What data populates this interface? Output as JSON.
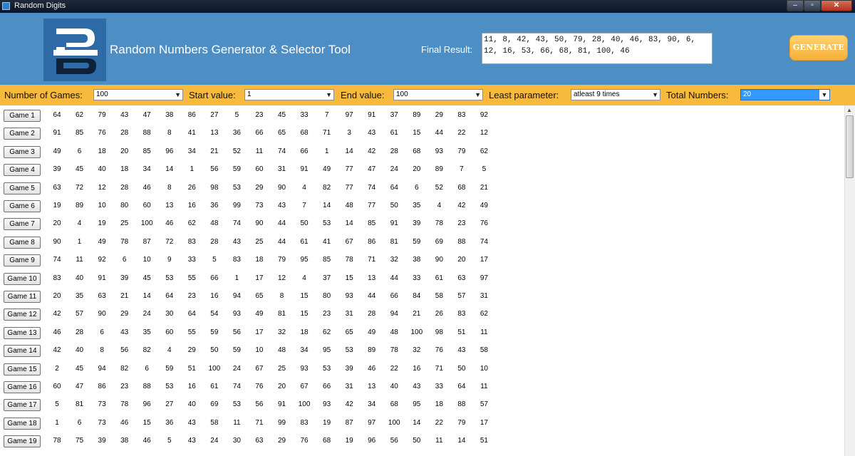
{
  "window": {
    "title": "Random Digits",
    "controls": {
      "minimize": "–",
      "maximize": "▫",
      "close": "✕"
    }
  },
  "header": {
    "app_title": "Random Numbers Generator & Selector Tool",
    "final_result_label": "Final Result:",
    "final_result_value": "11, 8, 42, 43, 50, 79, 28, 40, 46, 83, 90, 6, 12, 16, 53, 66, 68, 81, 100, 46",
    "generate_label": "GENERATE",
    "logo_letters": "RB",
    "colors": {
      "header_bg": "#4d8fc4",
      "logo_bg": "#2d6aa6",
      "params_bg": "#f7b93e",
      "generate_bg": "#f6b03c"
    }
  },
  "params": {
    "games_label": "Number of Games:",
    "games_value": "100",
    "start_label": "Start value:",
    "start_value": "1",
    "end_label": "End value:",
    "end_value": "100",
    "least_label": "Least parameter:",
    "least_value": "atleast 9 times",
    "total_label": "Total Numbers:",
    "total_value": "20"
  },
  "games": [
    {
      "label": "Game 1",
      "numbers": [
        "64",
        "62",
        "79",
        "43",
        "47",
        "38",
        "86",
        "27",
        "5",
        "23",
        "45",
        "33",
        "7",
        "97",
        "91",
        "37",
        "89",
        "29",
        "83",
        "92"
      ]
    },
    {
      "label": "Game 2",
      "numbers": [
        "91",
        "85",
        "76",
        "28",
        "88",
        "8",
        "41",
        "13",
        "36",
        "66",
        "65",
        "68",
        "71",
        "3",
        "43",
        "61",
        "15",
        "44",
        "22",
        "12"
      ]
    },
    {
      "label": "Game 3",
      "numbers": [
        "49",
        "6",
        "18",
        "20",
        "85",
        "96",
        "34",
        "21",
        "52",
        "11",
        "74",
        "66",
        "1",
        "14",
        "42",
        "28",
        "68",
        "93",
        "79",
        "62"
      ]
    },
    {
      "label": "Game 4",
      "numbers": [
        "39",
        "45",
        "40",
        "18",
        "34",
        "14",
        "1",
        "56",
        "59",
        "60",
        "31",
        "91",
        "49",
        "77",
        "47",
        "24",
        "20",
        "89",
        "7",
        "5"
      ]
    },
    {
      "label": "Game 5",
      "numbers": [
        "63",
        "72",
        "12",
        "28",
        "46",
        "8",
        "26",
        "98",
        "53",
        "29",
        "90",
        "4",
        "82",
        "77",
        "74",
        "64",
        "6",
        "52",
        "68",
        "21"
      ]
    },
    {
      "label": "Game 6",
      "numbers": [
        "19",
        "89",
        "10",
        "80",
        "60",
        "13",
        "16",
        "36",
        "99",
        "73",
        "43",
        "7",
        "14",
        "48",
        "77",
        "50",
        "35",
        "4",
        "42",
        "49"
      ]
    },
    {
      "label": "Game 7",
      "numbers": [
        "20",
        "4",
        "19",
        "25",
        "100",
        "46",
        "62",
        "48",
        "74",
        "90",
        "44",
        "50",
        "53",
        "14",
        "85",
        "91",
        "39",
        "78",
        "23",
        "76"
      ]
    },
    {
      "label": "Game 8",
      "numbers": [
        "90",
        "1",
        "49",
        "78",
        "87",
        "72",
        "83",
        "28",
        "43",
        "25",
        "44",
        "61",
        "41",
        "67",
        "86",
        "81",
        "59",
        "69",
        "88",
        "74"
      ]
    },
    {
      "label": "Game 9",
      "numbers": [
        "74",
        "11",
        "92",
        "6",
        "10",
        "9",
        "33",
        "5",
        "83",
        "18",
        "79",
        "95",
        "85",
        "78",
        "71",
        "32",
        "38",
        "90",
        "20",
        "17"
      ]
    },
    {
      "label": "Game 10",
      "numbers": [
        "83",
        "40",
        "91",
        "39",
        "45",
        "53",
        "55",
        "66",
        "1",
        "17",
        "12",
        "4",
        "37",
        "15",
        "13",
        "44",
        "33",
        "61",
        "63",
        "97"
      ]
    },
    {
      "label": "Game 11",
      "numbers": [
        "20",
        "35",
        "63",
        "21",
        "14",
        "64",
        "23",
        "16",
        "94",
        "65",
        "8",
        "15",
        "80",
        "93",
        "44",
        "66",
        "84",
        "58",
        "57",
        "31"
      ]
    },
    {
      "label": "Game 12",
      "numbers": [
        "42",
        "57",
        "90",
        "29",
        "24",
        "30",
        "64",
        "54",
        "93",
        "49",
        "81",
        "15",
        "23",
        "31",
        "28",
        "94",
        "21",
        "26",
        "83",
        "62"
      ]
    },
    {
      "label": "Game 13",
      "numbers": [
        "46",
        "28",
        "6",
        "43",
        "35",
        "60",
        "55",
        "59",
        "56",
        "17",
        "32",
        "18",
        "62",
        "65",
        "49",
        "48",
        "100",
        "98",
        "51",
        "11"
      ]
    },
    {
      "label": "Game 14",
      "numbers": [
        "42",
        "40",
        "8",
        "56",
        "82",
        "4",
        "29",
        "50",
        "59",
        "10",
        "48",
        "34",
        "95",
        "53",
        "89",
        "78",
        "32",
        "76",
        "43",
        "58"
      ]
    },
    {
      "label": "Game 15",
      "numbers": [
        "2",
        "45",
        "94",
        "82",
        "6",
        "59",
        "51",
        "100",
        "24",
        "67",
        "25",
        "93",
        "53",
        "39",
        "46",
        "22",
        "16",
        "71",
        "50",
        "10"
      ]
    },
    {
      "label": "Game 16",
      "numbers": [
        "60",
        "47",
        "86",
        "23",
        "88",
        "53",
        "16",
        "61",
        "74",
        "76",
        "20",
        "67",
        "66",
        "31",
        "13",
        "40",
        "43",
        "33",
        "64",
        "11"
      ]
    },
    {
      "label": "Game 17",
      "numbers": [
        "5",
        "81",
        "73",
        "78",
        "96",
        "27",
        "40",
        "69",
        "53",
        "56",
        "91",
        "100",
        "93",
        "42",
        "34",
        "68",
        "95",
        "18",
        "88",
        "57"
      ]
    },
    {
      "label": "Game 18",
      "numbers": [
        "1",
        "6",
        "73",
        "46",
        "15",
        "36",
        "43",
        "58",
        "11",
        "71",
        "99",
        "83",
        "19",
        "87",
        "97",
        "100",
        "14",
        "22",
        "79",
        "17"
      ]
    },
    {
      "label": "Game 19",
      "numbers": [
        "78",
        "75",
        "39",
        "38",
        "46",
        "5",
        "43",
        "24",
        "30",
        "63",
        "29",
        "76",
        "68",
        "19",
        "96",
        "56",
        "50",
        "11",
        "14",
        "51"
      ]
    }
  ]
}
